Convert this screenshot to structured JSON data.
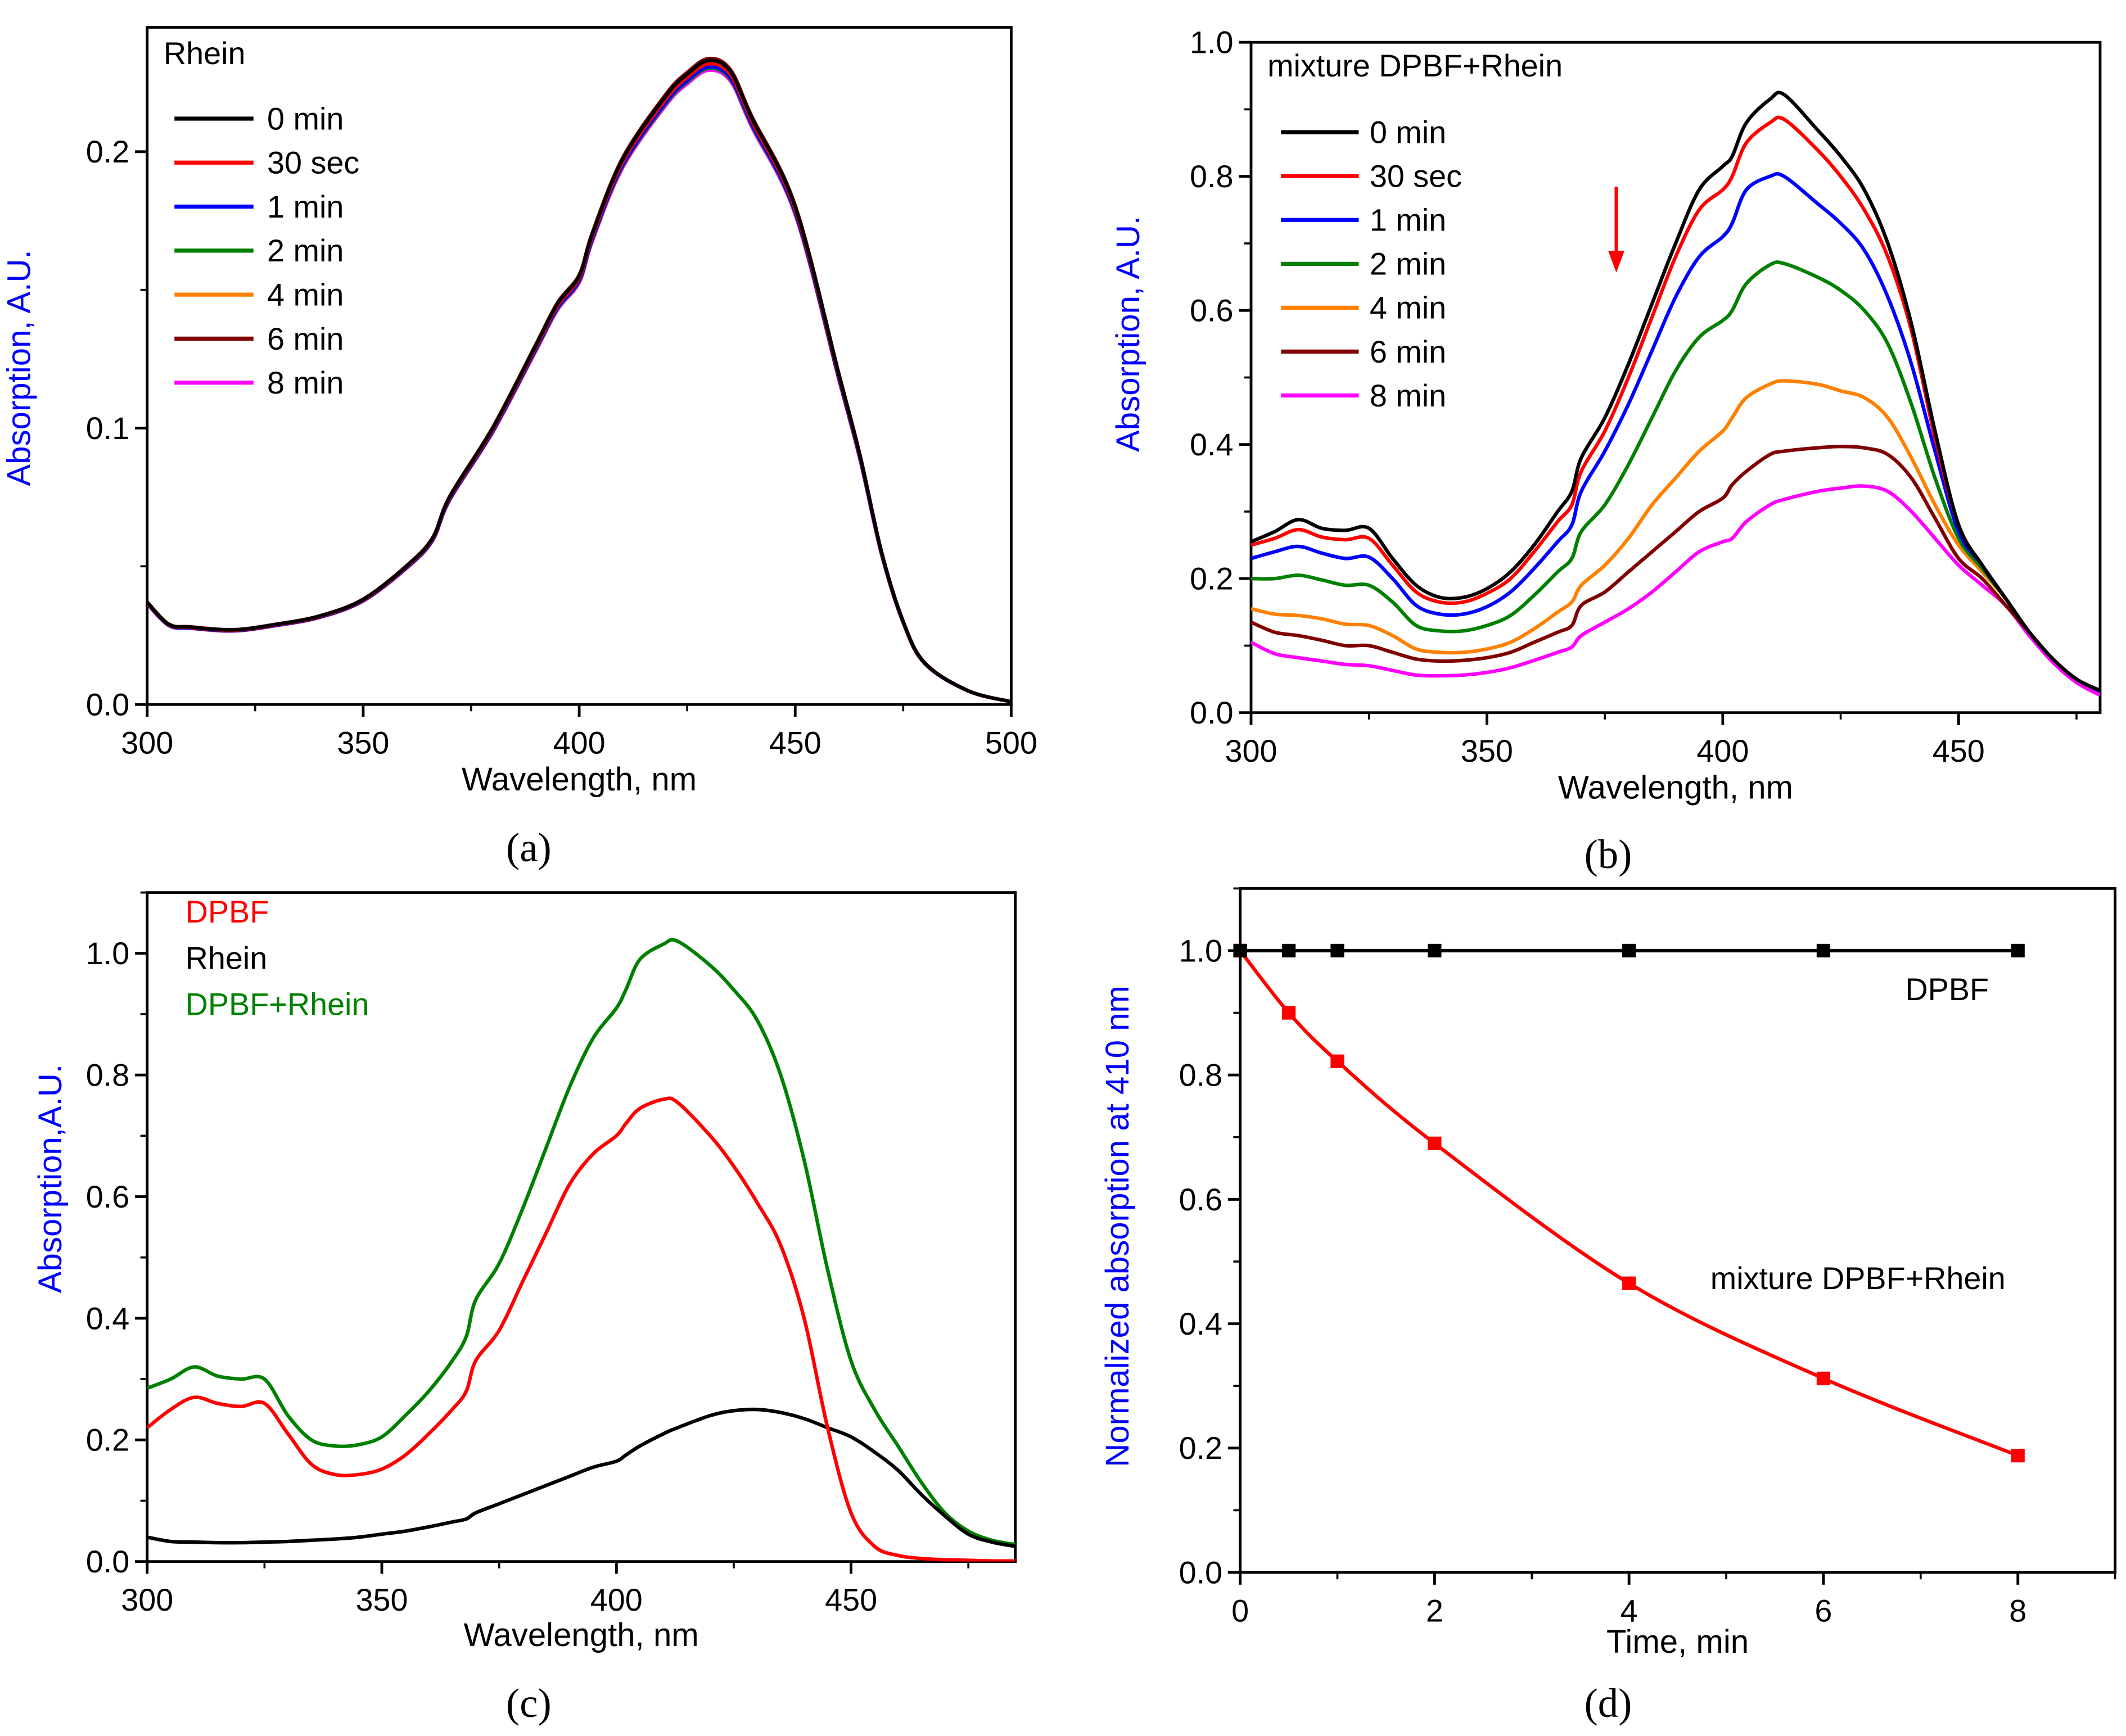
{
  "colors": {
    "black": "#000000",
    "red": "#ff0000",
    "blue": "#0000ff",
    "green": "#008000",
    "orange": "#ff8000",
    "brown": "#800000",
    "magenta": "#ff00ff",
    "axis_label": "#0000ff"
  },
  "chart_data": [
    {
      "id": "a",
      "panel_label": "(a)",
      "type": "line",
      "title": "Rhein",
      "xlabel": "Wavelength, nm",
      "ylabel": "Absorption, A.U.",
      "xlim": [
        300,
        500
      ],
      "ylim": [
        0,
        0.245
      ],
      "xticks": [
        "300",
        "350",
        "400",
        "450",
        "500"
      ],
      "yticks": [
        "0.0",
        "0.1",
        "0.2"
      ],
      "x": [
        300,
        305,
        310,
        320,
        330,
        340,
        350,
        360,
        366,
        370,
        380,
        390,
        395,
        400,
        403,
        410,
        420,
        425,
        430,
        435,
        440,
        450,
        460,
        465,
        470,
        475,
        480,
        490,
        500
      ],
      "base_y": [
        0.037,
        0.029,
        0.028,
        0.027,
        0.029,
        0.032,
        0.038,
        0.05,
        0.06,
        0.075,
        0.1,
        0.13,
        0.145,
        0.155,
        0.17,
        0.197,
        0.22,
        0.228,
        0.233,
        0.229,
        0.212,
        0.18,
        0.12,
        0.09,
        0.055,
        0.03,
        0.015,
        0.005,
        0.001
      ],
      "series": [
        {
          "name": "0 min",
          "color": "#000000",
          "scale": 1.0
        },
        {
          "name": "30 sec",
          "color": "#ff0000",
          "scale": 0.995
        },
        {
          "name": "1 min",
          "color": "#0000ff",
          "scale": 0.99
        },
        {
          "name": "2 min",
          "color": "#008000",
          "scale": 0.988
        },
        {
          "name": "4 min",
          "color": "#ff8000",
          "scale": 0.992
        },
        {
          "name": "6 min",
          "color": "#800000",
          "scale": 1.003
        },
        {
          "name": "8 min",
          "color": "#ff00ff",
          "scale": 0.985
        }
      ]
    },
    {
      "id": "b",
      "panel_label": "(b)",
      "type": "line",
      "title": "mixture DPBF+Rhein",
      "xlabel": "Wavelength, nm",
      "ylabel": "Absorption, A.U.",
      "xlim": [
        300,
        480
      ],
      "ylim": [
        0,
        1.0
      ],
      "xticks": [
        "300",
        "350",
        "400",
        "450"
      ],
      "yticks": [
        "0.0",
        "0.2",
        "0.4",
        "0.6",
        "0.8",
        "1.0"
      ],
      "annotation": "down-arrow at 377 nm",
      "x": [
        300,
        305,
        310,
        315,
        320,
        325,
        330,
        335,
        340,
        345,
        350,
        355,
        360,
        365,
        368,
        370,
        375,
        380,
        385,
        390,
        395,
        400,
        402,
        405,
        410,
        413,
        420,
        425,
        430,
        435,
        440,
        445,
        450,
        455,
        460,
        465,
        470,
        475,
        480
      ],
      "series": [
        {
          "name": "0 min",
          "color": "#000000",
          "y": [
            0.255,
            0.27,
            0.288,
            0.275,
            0.272,
            0.275,
            0.23,
            0.19,
            0.172,
            0.172,
            0.185,
            0.21,
            0.25,
            0.3,
            0.33,
            0.38,
            0.44,
            0.52,
            0.61,
            0.7,
            0.78,
            0.815,
            0.83,
            0.88,
            0.915,
            0.922,
            0.87,
            0.83,
            0.78,
            0.7,
            0.58,
            0.42,
            0.28,
            0.22,
            0.17,
            0.12,
            0.08,
            0.05,
            0.033
          ]
        },
        {
          "name": "30 sec",
          "color": "#ff0000",
          "y": [
            0.25,
            0.26,
            0.273,
            0.262,
            0.258,
            0.26,
            0.22,
            0.18,
            0.165,
            0.165,
            0.178,
            0.2,
            0.24,
            0.285,
            0.31,
            0.36,
            0.42,
            0.5,
            0.59,
            0.68,
            0.75,
            0.78,
            0.8,
            0.85,
            0.88,
            0.885,
            0.84,
            0.8,
            0.75,
            0.68,
            0.57,
            0.41,
            0.28,
            0.22,
            0.17,
            0.12,
            0.08,
            0.05,
            0.033
          ]
        },
        {
          "name": "1 min",
          "color": "#0000ff",
          "y": [
            0.23,
            0.24,
            0.248,
            0.238,
            0.23,
            0.232,
            0.2,
            0.16,
            0.147,
            0.147,
            0.158,
            0.18,
            0.215,
            0.255,
            0.28,
            0.33,
            0.39,
            0.46,
            0.54,
            0.62,
            0.68,
            0.71,
            0.73,
            0.78,
            0.8,
            0.8,
            0.76,
            0.73,
            0.69,
            0.62,
            0.52,
            0.39,
            0.27,
            0.22,
            0.17,
            0.12,
            0.08,
            0.05,
            0.032
          ]
        },
        {
          "name": "2 min",
          "color": "#008000",
          "y": [
            0.2,
            0.2,
            0.205,
            0.198,
            0.19,
            0.19,
            0.165,
            0.13,
            0.122,
            0.122,
            0.13,
            0.145,
            0.175,
            0.21,
            0.23,
            0.27,
            0.31,
            0.37,
            0.44,
            0.51,
            0.56,
            0.585,
            0.6,
            0.64,
            0.668,
            0.67,
            0.65,
            0.63,
            0.6,
            0.55,
            0.46,
            0.35,
            0.26,
            0.215,
            0.17,
            0.12,
            0.08,
            0.05,
            0.032
          ]
        },
        {
          "name": "4 min",
          "color": "#ff8000",
          "y": [
            0.155,
            0.147,
            0.145,
            0.14,
            0.132,
            0.13,
            0.115,
            0.095,
            0.09,
            0.09,
            0.095,
            0.105,
            0.125,
            0.15,
            0.165,
            0.19,
            0.22,
            0.26,
            0.31,
            0.35,
            0.39,
            0.42,
            0.44,
            0.47,
            0.49,
            0.495,
            0.49,
            0.48,
            0.47,
            0.44,
            0.38,
            0.31,
            0.25,
            0.21,
            0.17,
            0.12,
            0.08,
            0.05,
            0.032
          ]
        },
        {
          "name": "6 min",
          "color": "#800000",
          "y": [
            0.135,
            0.12,
            0.115,
            0.108,
            0.1,
            0.1,
            0.09,
            0.08,
            0.077,
            0.078,
            0.082,
            0.09,
            0.105,
            0.12,
            0.13,
            0.16,
            0.18,
            0.21,
            0.24,
            0.27,
            0.3,
            0.32,
            0.34,
            0.36,
            0.385,
            0.39,
            0.395,
            0.397,
            0.395,
            0.385,
            0.35,
            0.29,
            0.23,
            0.2,
            0.16,
            0.12,
            0.08,
            0.05,
            0.033
          ]
        },
        {
          "name": "8 min",
          "color": "#ff00ff",
          "y": [
            0.105,
            0.088,
            0.082,
            0.077,
            0.072,
            0.07,
            0.063,
            0.056,
            0.055,
            0.056,
            0.06,
            0.067,
            0.078,
            0.09,
            0.098,
            0.115,
            0.135,
            0.155,
            0.18,
            0.21,
            0.24,
            0.255,
            0.26,
            0.285,
            0.31,
            0.318,
            0.33,
            0.335,
            0.338,
            0.33,
            0.3,
            0.26,
            0.22,
            0.19,
            0.16,
            0.115,
            0.075,
            0.045,
            0.026
          ]
        }
      ]
    },
    {
      "id": "c",
      "panel_label": "(c)",
      "type": "line",
      "xlabel": "Wavelength, nm",
      "ylabel": "Absorption,A.U.",
      "xlim": [
        300,
        485
      ],
      "ylim": [
        0,
        1.1
      ],
      "xticks": [
        "300",
        "350",
        "400",
        "450"
      ],
      "yticks": [
        "0.0",
        "0.2",
        "0.4",
        "0.6",
        "0.8",
        "1.0"
      ],
      "x": [
        300,
        305,
        310,
        315,
        320,
        325,
        330,
        335,
        340,
        345,
        350,
        355,
        360,
        365,
        368,
        370,
        375,
        380,
        385,
        390,
        395,
        400,
        402,
        405,
        410,
        413,
        420,
        425,
        430,
        435,
        440,
        445,
        450,
        455,
        460,
        465,
        470,
        475,
        480,
        485
      ],
      "series": [
        {
          "name": "DPBF",
          "color": "#ff0000",
          "y": [
            0.22,
            0.25,
            0.27,
            0.26,
            0.255,
            0.26,
            0.21,
            0.16,
            0.143,
            0.143,
            0.152,
            0.175,
            0.21,
            0.25,
            0.28,
            0.33,
            0.38,
            0.46,
            0.54,
            0.62,
            0.67,
            0.7,
            0.72,
            0.745,
            0.76,
            0.755,
            0.7,
            0.65,
            0.59,
            0.52,
            0.4,
            0.22,
            0.08,
            0.025,
            0.01,
            0.005,
            0.003,
            0.002,
            0.001,
            0.001
          ]
        },
        {
          "name": "Rhein",
          "color": "#000000",
          "y": [
            0.04,
            0.033,
            0.032,
            0.031,
            0.031,
            0.032,
            0.033,
            0.035,
            0.037,
            0.04,
            0.045,
            0.05,
            0.057,
            0.065,
            0.07,
            0.08,
            0.095,
            0.11,
            0.125,
            0.14,
            0.155,
            0.165,
            0.175,
            0.19,
            0.21,
            0.22,
            0.24,
            0.248,
            0.25,
            0.245,
            0.235,
            0.22,
            0.205,
            0.18,
            0.15,
            0.11,
            0.075,
            0.045,
            0.032,
            0.025
          ]
        },
        {
          "name": "DPBF+Rhein",
          "color": "#008000",
          "y": [
            0.285,
            0.3,
            0.32,
            0.305,
            0.3,
            0.3,
            0.24,
            0.2,
            0.19,
            0.192,
            0.205,
            0.24,
            0.28,
            0.33,
            0.37,
            0.43,
            0.49,
            0.58,
            0.68,
            0.78,
            0.86,
            0.91,
            0.94,
            0.99,
            1.015,
            1.02,
            0.98,
            0.94,
            0.89,
            0.8,
            0.66,
            0.48,
            0.33,
            0.25,
            0.19,
            0.13,
            0.08,
            0.05,
            0.035,
            0.028
          ]
        }
      ]
    },
    {
      "id": "d",
      "panel_label": "(d)",
      "type": "line",
      "xlabel": "Time, min",
      "ylabel": "Normalized absorption at 410 nm",
      "xlim": [
        0,
        9
      ],
      "ylim": [
        0,
        1.1
      ],
      "xticks": [
        "0",
        "2",
        "4",
        "6",
        "8"
      ],
      "yticks": [
        "0.0",
        "0.2",
        "0.4",
        "0.6",
        "0.8",
        "1.0"
      ],
      "x": [
        0,
        0.5,
        1,
        2,
        4,
        6,
        8
      ],
      "markers": "square",
      "series": [
        {
          "name": "DPBF",
          "color": "#000000",
          "y": [
            1,
            1,
            1,
            1,
            1,
            1,
            1
          ]
        },
        {
          "name": "mixture DPBF+Rhein",
          "color": "#ff0000",
          "y": [
            1,
            0.9,
            0.822,
            0.69,
            0.465,
            0.312,
            0.188
          ]
        }
      ]
    }
  ]
}
